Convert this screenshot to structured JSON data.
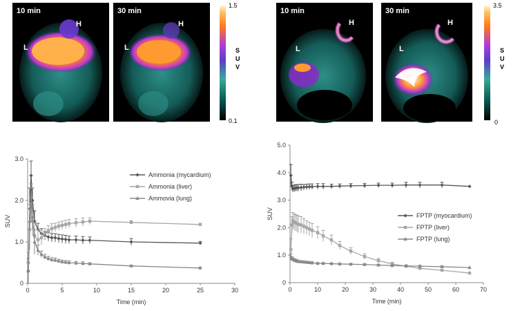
{
  "panels": [
    {
      "scale": {
        "max": "1.5",
        "min": "0.1",
        "label": [
          "S",
          "U",
          "V"
        ]
      },
      "images": [
        {
          "time": "10 min",
          "labels": [
            "H",
            "L"
          ]
        },
        {
          "time": "30 min",
          "labels": [
            "H",
            "L"
          ]
        }
      ]
    },
    {
      "scale": {
        "max": "3.5",
        "min": "0",
        "label": [
          "S",
          "U",
          "V"
        ]
      },
      "images": [
        {
          "time": "10 min",
          "labels": [
            "H",
            "L"
          ]
        },
        {
          "time": "30 min",
          "labels": [
            "H",
            "L"
          ]
        }
      ]
    }
  ],
  "chart_data": [
    {
      "type": "line",
      "xlabel": "Time (min)",
      "ylabel": "SUV",
      "xlim": [
        0,
        30
      ],
      "ylim": [
        0,
        3.0
      ],
      "x_ticks": [
        0,
        5,
        10,
        15,
        20,
        25,
        30
      ],
      "y_ticks": [
        "0",
        "1.0",
        "2.0",
        "3.0"
      ],
      "legend_position": "right",
      "series": [
        {
          "name": "Ammonia (mycardium)",
          "color": "#555555",
          "marker": "diamond",
          "x": [
            0.1,
            0.3,
            0.5,
            0.7,
            1.0,
            1.5,
            2.0,
            2.5,
            3.0,
            3.5,
            4.0,
            4.5,
            5.0,
            5.5,
            6.0,
            7.0,
            8.0,
            9.0,
            15,
            25
          ],
          "y": [
            0.3,
            1.8,
            2.6,
            2.0,
            1.5,
            1.3,
            1.2,
            1.15,
            1.12,
            1.1,
            1.1,
            1.08,
            1.07,
            1.06,
            1.05,
            1.05,
            1.04,
            1.04,
            1.0,
            0.97
          ],
          "err": [
            0.2,
            0.5,
            0.35,
            0.3,
            0.25,
            0.15,
            0.12,
            0.1,
            0.1,
            0.1,
            0.1,
            0.1,
            0.1,
            0.1,
            0.09,
            0.09,
            0.09,
            0.08,
            0.08,
            0.04
          ]
        },
        {
          "name": "Ammonia (liver)",
          "color": "#a6a6a6",
          "marker": "square",
          "x": [
            0.1,
            0.3,
            0.5,
            0.7,
            1.0,
            1.5,
            2.0,
            2.5,
            3.0,
            3.5,
            4.0,
            4.5,
            5.0,
            5.5,
            6.0,
            7.0,
            8.0,
            9.0,
            15,
            25
          ],
          "y": [
            0.5,
            1.3,
            1.9,
            1.5,
            1.15,
            1.05,
            1.1,
            1.2,
            1.27,
            1.32,
            1.35,
            1.38,
            1.4,
            1.42,
            1.44,
            1.46,
            1.48,
            1.5,
            1.47,
            1.42
          ],
          "err": [
            0.25,
            0.5,
            0.4,
            0.35,
            0.3,
            0.25,
            0.18,
            0.12,
            0.12,
            0.12,
            0.1,
            0.1,
            0.1,
            0.1,
            0.1,
            0.1,
            0.1,
            0.08,
            0.04,
            0.03
          ]
        },
        {
          "name": "Ammovia (lung)",
          "color": "#888888",
          "marker": "triangle",
          "x": [
            0.1,
            0.3,
            0.5,
            0.7,
            1.0,
            1.5,
            2.0,
            2.5,
            3.0,
            3.5,
            4.0,
            4.5,
            5.0,
            5.5,
            6.0,
            7.0,
            8.0,
            9.0,
            15,
            25
          ],
          "y": [
            0.3,
            1.5,
            2.1,
            1.6,
            1.0,
            0.8,
            0.7,
            0.64,
            0.6,
            0.57,
            0.56,
            0.54,
            0.52,
            0.51,
            0.5,
            0.49,
            0.48,
            0.47,
            0.42,
            0.37
          ],
          "err": [
            0.3,
            0.4,
            0.3,
            0.3,
            0.3,
            0.12,
            0.08,
            0.06,
            0.05,
            0.05,
            0.05,
            0.04,
            0.04,
            0.04,
            0.04,
            0.04,
            0.04,
            0.03,
            0.02,
            0.02
          ]
        }
      ]
    },
    {
      "type": "line",
      "xlabel": "Time (min)",
      "ylabel": "SUV",
      "xlim": [
        0,
        70
      ],
      "ylim": [
        0,
        5.0
      ],
      "x_ticks": [
        0,
        10,
        20,
        30,
        40,
        50,
        60,
        70
      ],
      "y_ticks": [
        "0",
        "1.0",
        "2.0",
        "3.0",
        "4.0",
        "5.0"
      ],
      "legend_position": "right",
      "series": [
        {
          "name": "FPTP (myocardium)",
          "color": "#555555",
          "marker": "diamond",
          "x": [
            0.3,
            0.7,
            1,
            1.5,
            2,
            2.5,
            3,
            4,
            5,
            6,
            7,
            8,
            10,
            12,
            15,
            18,
            22,
            27,
            32,
            37,
            42,
            47,
            55,
            65
          ],
          "y": [
            3.9,
            3.5,
            3.42,
            3.42,
            3.44,
            3.45,
            3.45,
            3.46,
            3.47,
            3.48,
            3.49,
            3.49,
            3.5,
            3.5,
            3.5,
            3.51,
            3.52,
            3.53,
            3.54,
            3.54,
            3.55,
            3.55,
            3.55,
            3.5
          ],
          "err": [
            0.4,
            0.15,
            0.12,
            0.12,
            0.12,
            0.12,
            0.12,
            0.12,
            0.1,
            0.1,
            0.1,
            0.1,
            0.1,
            0.1,
            0.08,
            0.08,
            0.08,
            0.08,
            0.08,
            0.08,
            0.1,
            0.1,
            0.1,
            0.0
          ]
        },
        {
          "name": "FPTP (liver)",
          "color": "#a6a6a6",
          "marker": "square",
          "x": [
            0.3,
            0.7,
            1,
            1.5,
            2,
            2.5,
            3,
            4,
            5,
            6,
            7,
            8,
            10,
            12,
            15,
            18,
            22,
            27,
            32,
            37,
            42,
            47,
            55,
            65
          ],
          "y": [
            1.2,
            2.1,
            2.25,
            2.2,
            2.18,
            2.15,
            2.12,
            2.1,
            2.05,
            2.0,
            1.95,
            1.9,
            1.82,
            1.7,
            1.55,
            1.35,
            1.15,
            0.95,
            0.8,
            0.68,
            0.6,
            0.52,
            0.45,
            0.35
          ],
          "err": [
            0.4,
            0.3,
            0.3,
            0.3,
            0.3,
            0.3,
            0.3,
            0.3,
            0.28,
            0.25,
            0.25,
            0.25,
            0.22,
            0.2,
            0.18,
            0.15,
            0.12,
            0.1,
            0.08,
            0.06,
            0.05,
            0.04,
            0.04,
            0.0
          ]
        },
        {
          "name": "FPTP (lung)",
          "color": "#888888",
          "marker": "triangle",
          "x": [
            0.3,
            0.7,
            1,
            1.5,
            2,
            2.5,
            3,
            4,
            5,
            6,
            7,
            8,
            10,
            12,
            15,
            18,
            22,
            27,
            32,
            37,
            42,
            47,
            55,
            65
          ],
          "y": [
            0.95,
            0.88,
            0.85,
            0.82,
            0.8,
            0.78,
            0.77,
            0.76,
            0.75,
            0.74,
            0.73,
            0.72,
            0.7,
            0.7,
            0.69,
            0.68,
            0.67,
            0.66,
            0.64,
            0.62,
            0.61,
            0.6,
            0.58,
            0.55
          ],
          "err": [
            0.1,
            0.06,
            0.05,
            0.05,
            0.05,
            0.05,
            0.04,
            0.04,
            0.04,
            0.04,
            0.04,
            0.04,
            0.03,
            0.03,
            0.03,
            0.03,
            0.03,
            0.03,
            0.03,
            0.03,
            0.03,
            0.03,
            0.03,
            0.0
          ]
        }
      ]
    }
  ]
}
